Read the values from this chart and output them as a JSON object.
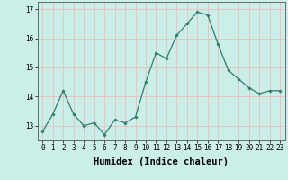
{
  "x": [
    0,
    1,
    2,
    3,
    4,
    5,
    6,
    7,
    8,
    9,
    10,
    11,
    12,
    13,
    14,
    15,
    16,
    17,
    18,
    19,
    20,
    21,
    22,
    23
  ],
  "y": [
    12.8,
    13.4,
    14.2,
    13.4,
    13.0,
    13.1,
    12.7,
    13.2,
    13.1,
    13.3,
    14.5,
    15.5,
    15.3,
    16.1,
    16.5,
    16.9,
    16.8,
    15.8,
    14.9,
    14.6,
    14.3,
    14.1,
    14.2,
    14.2
  ],
  "line_color": "#2e7d6e",
  "marker": "D",
  "marker_size": 1.8,
  "linewidth": 0.9,
  "xlabel": "Humidex (Indice chaleur)",
  "ylim": [
    12.5,
    17.25
  ],
  "xlim": [
    -0.5,
    23.5
  ],
  "yticks": [
    13,
    14,
    15,
    16,
    17
  ],
  "xticks": [
    0,
    1,
    2,
    3,
    4,
    5,
    6,
    7,
    8,
    9,
    10,
    11,
    12,
    13,
    14,
    15,
    16,
    17,
    18,
    19,
    20,
    21,
    22,
    23
  ],
  "bg_color": "#cceee8",
  "grid_color": "#e8b8b8",
  "tick_fontsize": 5.5,
  "xlabel_fontsize": 7.5
}
